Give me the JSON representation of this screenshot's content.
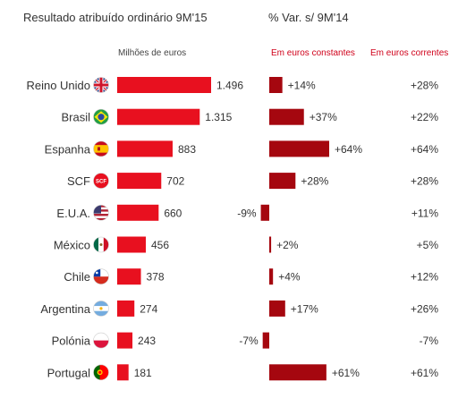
{
  "header": {
    "left_title": "Resultado atribuído ordinário 9M'15",
    "right_title": "% Var. s/ 9M'14",
    "unit_label": "Milhões de euros",
    "col_constant": "Em euros constantes",
    "col_current": "Em euros correntes"
  },
  "colors": {
    "bar_main": "#e8101f",
    "bar_var": "#a5070f",
    "accent_text": "#d0021b"
  },
  "chart_data": {
    "type": "bar",
    "categories": [
      "Reino Unido",
      "Brasil",
      "Espanha",
      "SCF",
      "E.U.A.",
      "México",
      "Chile",
      "Argentina",
      "Polónia",
      "Portugal"
    ],
    "flags": [
      "uk-flag-icon",
      "brazil-flag-icon",
      "spain-flag-icon",
      "scf-badge-icon",
      "usa-flag-icon",
      "mexico-flag-icon",
      "chile-flag-icon",
      "argentina-flag-icon",
      "poland-flag-icon",
      "portugal-flag-icon"
    ],
    "series": [
      {
        "values": [
          1496,
          1315,
          883,
          702,
          660,
          456,
          378,
          274,
          243,
          181
        ],
        "labels": [
          "1.496",
          "1.315",
          "883",
          "702",
          "660",
          "456",
          "378",
          "274",
          "243",
          "181"
        ]
      },
      {
        "values": [
          14,
          37,
          64,
          28,
          -9,
          2,
          4,
          17,
          -7,
          61
        ],
        "labels": [
          "+14%",
          "+37%",
          "+64%",
          "+28%",
          "-9%",
          "+2%",
          "+4%",
          "+17%",
          "-7%",
          "+61%"
        ]
      },
      {
        "values": [
          28,
          22,
          64,
          28,
          11,
          5,
          12,
          26,
          -7,
          61
        ],
        "labels": [
          "+28%",
          "+22%",
          "+64%",
          "+28%",
          "+11%",
          "+5%",
          "+12%",
          "+26%",
          "-7%",
          "+61%"
        ]
      }
    ]
  }
}
